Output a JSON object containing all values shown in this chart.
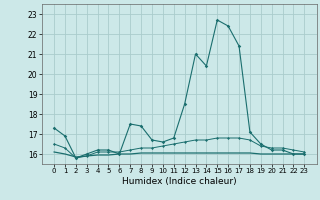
{
  "xlabel": "Humidex (Indice chaleur)",
  "background_color": "#cce8e8",
  "grid_color": "#aacccc",
  "line_color": "#1a6e6e",
  "x_values": [
    0,
    1,
    2,
    3,
    4,
    5,
    6,
    7,
    8,
    9,
    10,
    11,
    12,
    13,
    14,
    15,
    16,
    17,
    18,
    19,
    20,
    21,
    22,
    23
  ],
  "line1": [
    17.3,
    16.9,
    15.8,
    16.0,
    16.2,
    16.2,
    16.0,
    17.5,
    17.4,
    16.7,
    16.6,
    16.8,
    18.5,
    21.0,
    20.4,
    22.7,
    22.4,
    21.4,
    17.1,
    16.5,
    16.2,
    16.2,
    16.0,
    16.0
  ],
  "line2": [
    16.5,
    16.3,
    15.8,
    15.9,
    16.1,
    16.1,
    16.1,
    16.2,
    16.3,
    16.3,
    16.4,
    16.5,
    16.6,
    16.7,
    16.7,
    16.8,
    16.8,
    16.8,
    16.7,
    16.4,
    16.3,
    16.3,
    16.2,
    16.1
  ],
  "line3": [
    16.1,
    16.0,
    15.85,
    15.9,
    15.95,
    15.95,
    16.0,
    16.0,
    16.05,
    16.05,
    16.05,
    16.05,
    16.05,
    16.05,
    16.05,
    16.05,
    16.05,
    16.05,
    16.05,
    16.0,
    16.0,
    16.0,
    16.0,
    16.0
  ],
  "ylim": [
    15.5,
    23.5
  ],
  "yticks": [
    16,
    17,
    18,
    19,
    20,
    21,
    22,
    23
  ],
  "xticks": [
    0,
    1,
    2,
    3,
    4,
    5,
    6,
    7,
    8,
    9,
    10,
    11,
    12,
    13,
    14,
    15,
    16,
    17,
    18,
    19,
    20,
    21,
    22,
    23
  ]
}
